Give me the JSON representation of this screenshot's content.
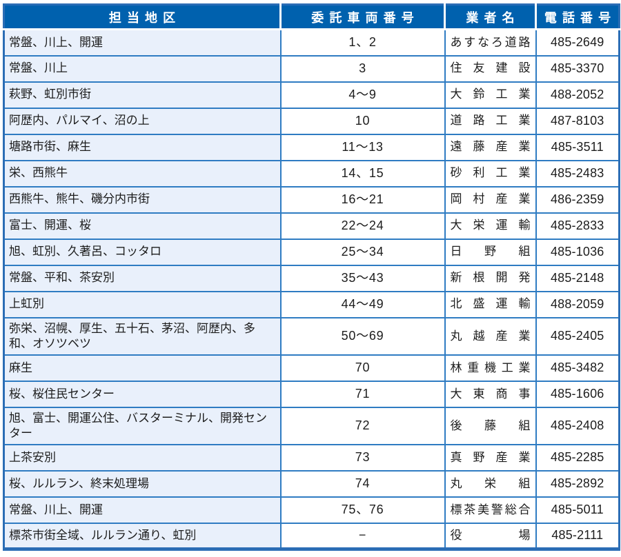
{
  "colors": {
    "header_bg": "#0061ae",
    "header_fg": "#ffffff",
    "grid": "#2e7bc2",
    "outer": "#2b6db5",
    "district_bg": "#e9f0fb",
    "text": "#1c1c1c"
  },
  "table": {
    "headers": [
      "担当地区",
      "委託車両番号",
      "業者名",
      "電話番号"
    ],
    "rows": [
      {
        "district": "常盤、川上、開運",
        "vehicle_numbers": "1、2",
        "company": "あすなろ道路",
        "phone": "485-2649"
      },
      {
        "district": "常盤、川上",
        "vehicle_numbers": "3",
        "company": "住友建設",
        "phone": "485-3370"
      },
      {
        "district": "萩野、虹別市街",
        "vehicle_numbers": "4〜9",
        "company": "大鈴工業",
        "phone": "488-2052"
      },
      {
        "district": "阿歴内、パルマイ、沼の上",
        "vehicle_numbers": "10",
        "company": "道路工業",
        "phone": "487-8103"
      },
      {
        "district": "塘路市街、麻生",
        "vehicle_numbers": "11〜13",
        "company": "遠藤産業",
        "phone": "485-3511"
      },
      {
        "district": "栄、西熊牛",
        "vehicle_numbers": "14、15",
        "company": "砂利工業",
        "phone": "485-2483"
      },
      {
        "district": "西熊牛、熊牛、磯分内市街",
        "vehicle_numbers": "16〜21",
        "company": "岡村産業",
        "phone": "486-2359"
      },
      {
        "district": "富士、開運、桜",
        "vehicle_numbers": "22〜24",
        "company": "大栄運輸",
        "phone": "485-2833"
      },
      {
        "district": "旭、虹別、久著呂、コッタロ",
        "vehicle_numbers": "25〜34",
        "company": "日野組",
        "phone": "485-1036"
      },
      {
        "district": "常盤、平和、茶安別",
        "vehicle_numbers": "35〜43",
        "company": "新根開発",
        "phone": "485-2148"
      },
      {
        "district": "上虹別",
        "vehicle_numbers": "44〜49",
        "company": "北盛運輸",
        "phone": "488-2059"
      },
      {
        "district": "弥栄、沼幌、厚生、五十石、茅沼、阿歴内、多和、オソツベツ",
        "vehicle_numbers": "50〜69",
        "company": "丸越産業",
        "phone": "485-2405"
      },
      {
        "district": "麻生",
        "vehicle_numbers": "70",
        "company": "林重機工業",
        "phone": "485-3482"
      },
      {
        "district": "桜、桜住民センター",
        "vehicle_numbers": "71",
        "company": "大東商事",
        "phone": "485-1606"
      },
      {
        "district": "旭、富士、開運公住、バスターミナル、開発センター",
        "vehicle_numbers": "72",
        "company": "後藤組",
        "phone": "485-2408"
      },
      {
        "district": "上茶安別",
        "vehicle_numbers": "73",
        "company": "真野産業",
        "phone": "485-2285"
      },
      {
        "district": "桜、ルルラン、終末処理場",
        "vehicle_numbers": "74",
        "company": "丸栄組",
        "phone": "485-2892"
      },
      {
        "district": "常盤、川上、開運",
        "vehicle_numbers": "75、76",
        "company": "標茶美警総合",
        "phone": "485-5011"
      },
      {
        "district": "標茶市街全域、ルルラン通り、虹別",
        "vehicle_numbers": "−",
        "company": "役場",
        "phone": "485-2111"
      }
    ]
  }
}
